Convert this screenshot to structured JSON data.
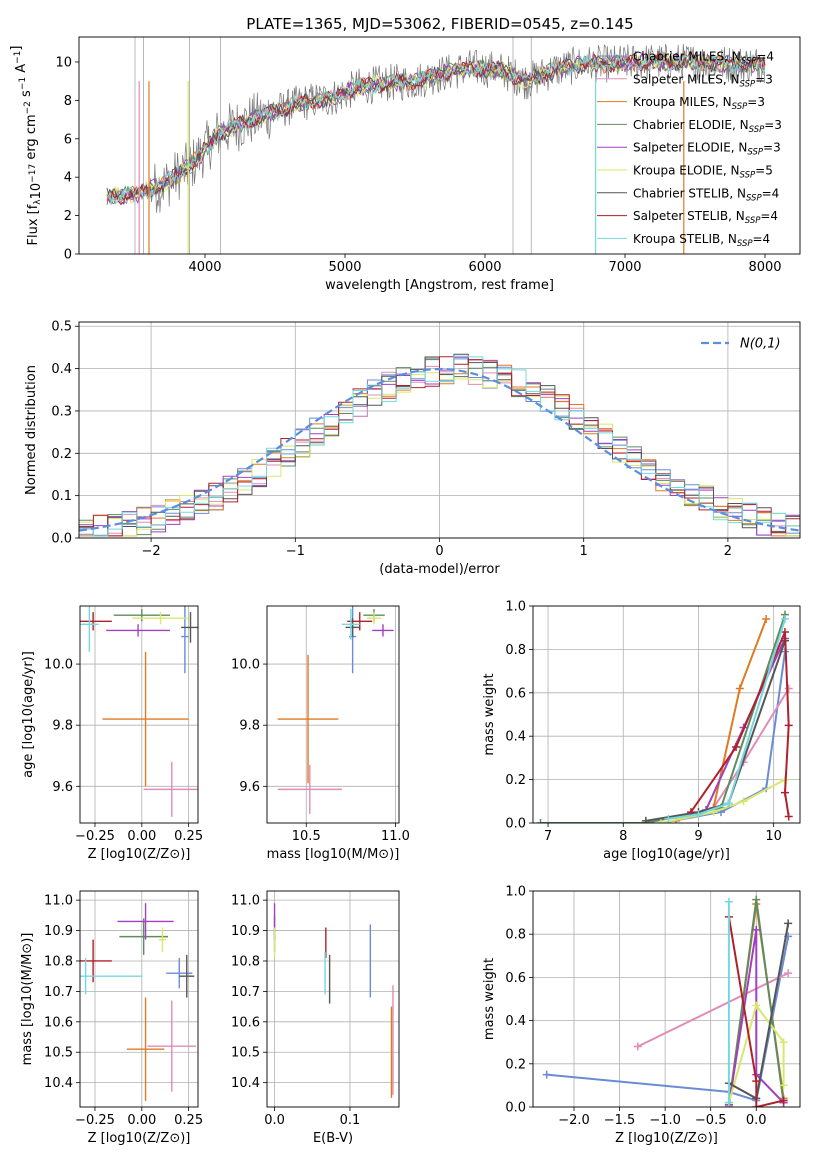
{
  "figure_title": "PLATE=1365, MJD=53062, FIBERID=0545, z=0.145",
  "colors": {
    "Chabrier MILES": "#6a8cd6",
    "Salpeter MILES": "#e08cb8",
    "Kroupa MILES": "#e07a20",
    "Chabrier ELODIE": "#5f8c5f",
    "Salpeter ELODIE": "#a040c0",
    "Kroupa ELODIE": "#d8e86a",
    "Chabrier STELIB": "#555555",
    "Salpeter STELIB": "#b0202a",
    "Kroupa STELIB": "#74d8e0",
    "data": "#777777",
    "normal_curve": "#5b8ee0"
  },
  "chart_data": [
    {
      "type": "line",
      "title": "PLATE=1365, MJD=53062, FIBERID=0545, z=0.145",
      "xlabel": "wavelength [Angstrom, rest frame]",
      "ylabel": "Flux [f_λ 10^-17 erg cm^-2 s^-1 A^-1]",
      "xlim": [
        3100,
        8250
      ],
      "ylim": [
        0,
        11.3
      ],
      "xticks": [
        4000,
        5000,
        6000,
        7000,
        8000
      ],
      "yticks": [
        0,
        2,
        4,
        6,
        8,
        10
      ],
      "grid": false,
      "legend_position": "top-right",
      "continuum": [
        [
          3300,
          3.0
        ],
        [
          3500,
          3.1
        ],
        [
          3700,
          3.6
        ],
        [
          3900,
          4.6
        ],
        [
          4100,
          6.3
        ],
        [
          4300,
          6.9
        ],
        [
          4500,
          7.4
        ],
        [
          4700,
          7.9
        ],
        [
          4900,
          8.1
        ],
        [
          5100,
          8.7
        ],
        [
          5300,
          8.9
        ],
        [
          5500,
          9.0
        ],
        [
          5700,
          9.4
        ],
        [
          5900,
          9.7
        ],
        [
          6100,
          9.6
        ],
        [
          6300,
          9.0
        ],
        [
          6500,
          9.6
        ],
        [
          6700,
          9.9
        ],
        [
          6900,
          9.9
        ],
        [
          7100,
          10.0
        ],
        [
          7300,
          10.0
        ],
        [
          7500,
          10.0
        ],
        [
          7700,
          9.9
        ],
        [
          7900,
          9.9
        ],
        [
          8000,
          9.9
        ]
      ],
      "series": [
        {
          "name": "Chabrier MILES",
          "nssp": 4
        },
        {
          "name": "Salpeter MILES",
          "nssp": 3
        },
        {
          "name": "Kroupa MILES",
          "nssp": 3
        },
        {
          "name": "Chabrier ELODIE",
          "nssp": 3
        },
        {
          "name": "Salpeter ELODIE",
          "nssp": 3
        },
        {
          "name": "Kroupa ELODIE",
          "nssp": 5
        },
        {
          "name": "Chabrier STELIB",
          "nssp": 4
        },
        {
          "name": "Salpeter STELIB",
          "nssp": 4
        },
        {
          "name": "Kroupa STELIB",
          "nssp": 4
        }
      ]
    },
    {
      "type": "bar",
      "xlabel": "(data-model)/error",
      "ylabel": "Normed distribution",
      "xlim": [
        -2.5,
        2.5
      ],
      "ylim": [
        0,
        0.51
      ],
      "xticks": [
        -2,
        -1,
        0,
        1,
        2
      ],
      "yticks": [
        0.0,
        0.1,
        0.2,
        0.3,
        0.4,
        0.5
      ],
      "grid": true,
      "legend_position": "top-right",
      "legend": "N(0,1)",
      "bin_width": 0.1,
      "bin_start": -2.5,
      "reference_curve": "N(0,1)"
    },
    {
      "type": "scatter",
      "xlabel": "Z [log10(Z/Z⊙)]",
      "ylabel": "age [log10(age/yr)]",
      "xlim": [
        -0.33,
        0.3
      ],
      "ylim": [
        9.48,
        10.19
      ],
      "xticks": [
        -0.25,
        0.0,
        0.25
      ],
      "yticks": [
        9.6,
        9.8,
        10.0
      ],
      "grid": true,
      "points": [
        {
          "series": "Chabrier MILES",
          "x": 0.23,
          "y": 10.09,
          "xerr": 0.02,
          "yerr": 0.12
        },
        {
          "series": "Salpeter MILES",
          "x": 0.16,
          "y": 9.59,
          "xerr": 0.15,
          "yerr": 0.09
        },
        {
          "series": "Kroupa MILES",
          "x": 0.02,
          "y": 9.82,
          "xerr": 0.23,
          "yerr": 0.22
        },
        {
          "series": "Chabrier ELODIE",
          "x": 0.0,
          "y": 10.16,
          "xerr": 0.15,
          "yerr": 0.02
        },
        {
          "series": "Salpeter ELODIE",
          "x": -0.02,
          "y": 10.11,
          "xerr": 0.17,
          "yerr": 0.02
        },
        {
          "series": "Kroupa ELODIE",
          "x": 0.1,
          "y": 10.15,
          "xerr": 0.15,
          "yerr": 0.02
        },
        {
          "series": "Chabrier STELIB",
          "x": 0.26,
          "y": 10.12,
          "xerr": 0.05,
          "yerr": 0.05
        },
        {
          "series": "Salpeter STELIB",
          "x": -0.26,
          "y": 10.14,
          "xerr": 0.1,
          "yerr": 0.03
        },
        {
          "series": "Kroupa STELIB",
          "x": -0.28,
          "y": 10.13,
          "xerr": 0.05,
          "yerr": 0.09
        }
      ]
    },
    {
      "type": "scatter",
      "xlabel": "mass [log10(M/M⊙)]",
      "ylabel": "",
      "xlim": [
        10.28,
        11.02
      ],
      "ylim": [
        9.48,
        10.19
      ],
      "xticks": [
        10.5,
        11.0
      ],
      "yticks": [
        9.6,
        9.8,
        10.0
      ],
      "grid": true,
      "points": [
        {
          "series": "Chabrier MILES",
          "x": 10.76,
          "y": 10.09,
          "xerr": 0.02,
          "yerr": 0.12
        },
        {
          "series": "Salpeter MILES",
          "x": 10.52,
          "y": 9.59,
          "xerr": 0.18,
          "yerr": 0.08
        },
        {
          "series": "Kroupa MILES",
          "x": 10.51,
          "y": 9.82,
          "xerr": 0.17,
          "yerr": 0.21
        },
        {
          "series": "Chabrier ELODIE",
          "x": 10.88,
          "y": 10.16,
          "xerr": 0.06,
          "yerr": 0.02
        },
        {
          "series": "Salpeter ELODIE",
          "x": 10.93,
          "y": 10.11,
          "xerr": 0.06,
          "yerr": 0.02
        },
        {
          "series": "Kroupa ELODIE",
          "x": 10.88,
          "y": 10.15,
          "xerr": 0.04,
          "yerr": 0.02
        },
        {
          "series": "Chabrier STELIB",
          "x": 10.76,
          "y": 10.12,
          "xerr": 0.04,
          "yerr": 0.03
        },
        {
          "series": "Salpeter STELIB",
          "x": 10.8,
          "y": 10.14,
          "xerr": 0.07,
          "yerr": 0.03
        },
        {
          "series": "Kroupa STELIB",
          "x": 10.75,
          "y": 10.13,
          "xerr": 0.05,
          "yerr": 0.05
        }
      ]
    },
    {
      "type": "line",
      "xlabel": "age [log10(age/yr)]",
      "ylabel": "mass weight",
      "xlim": [
        6.8,
        10.35
      ],
      "ylim": [
        0,
        1.0
      ],
      "xticks": [
        7,
        8,
        9,
        10
      ],
      "yticks": [
        0.0,
        0.2,
        0.4,
        0.6,
        0.8,
        1.0
      ],
      "grid": true,
      "series": [
        {
          "name": "Chabrier MILES",
          "points": [
            [
              8.5,
              0.0
            ],
            [
              9.3,
              0.05
            ],
            [
              9.9,
              0.16
            ],
            [
              10.15,
              0.79
            ]
          ]
        },
        {
          "name": "Salpeter MILES",
          "points": [
            [
              9.2,
              0.07
            ],
            [
              9.6,
              0.28
            ],
            [
              10.2,
              0.62
            ]
          ]
        },
        {
          "name": "Kroupa MILES",
          "points": [
            [
              8.7,
              0.01
            ],
            [
              9.2,
              0.07
            ],
            [
              9.55,
              0.62
            ],
            [
              9.9,
              0.94
            ]
          ]
        },
        {
          "name": "Chabrier ELODIE",
          "points": [
            [
              6.9,
              0.0
            ],
            [
              8.3,
              0.0
            ],
            [
              9.3,
              0.07
            ],
            [
              10.15,
              0.96
            ]
          ]
        },
        {
          "name": "Salpeter ELODIE",
          "points": [
            [
              8.9,
              0.04
            ],
            [
              9.1,
              0.06
            ],
            [
              9.6,
              0.44
            ],
            [
              10.15,
              0.85
            ]
          ]
        },
        {
          "name": "Kroupa ELODIE",
          "points": [
            [
              8.5,
              0.0
            ],
            [
              9.2,
              0.05
            ],
            [
              9.6,
              0.1
            ],
            [
              10.15,
              0.2
            ]
          ]
        },
        {
          "name": "Chabrier STELIB",
          "points": [
            [
              8.3,
              0.01
            ],
            [
              9.0,
              0.05
            ],
            [
              9.4,
              0.09
            ],
            [
              10.15,
              0.84
            ]
          ]
        },
        {
          "name": "Salpeter STELIB",
          "points": [
            [
              8.9,
              0.05
            ],
            [
              9.5,
              0.35
            ],
            [
              10.15,
              0.88
            ],
            [
              10.2,
              0.45
            ],
            [
              10.15,
              0.14
            ],
            [
              10.2,
              0.03
            ]
          ]
        },
        {
          "name": "Kroupa STELIB",
          "points": [
            [
              8.6,
              0.02
            ],
            [
              9.0,
              0.04
            ],
            [
              9.4,
              0.09
            ],
            [
              10.15,
              0.94
            ]
          ]
        }
      ]
    },
    {
      "type": "scatter",
      "xlabel": "Z [log10(Z/Z⊙)]",
      "ylabel": "mass [log10(M/M⊙)]",
      "xlim": [
        -0.33,
        0.3
      ],
      "ylim": [
        10.32,
        11.03
      ],
      "xticks": [
        -0.25,
        0.0,
        0.25
      ],
      "yticks": [
        10.4,
        10.5,
        10.6,
        10.7,
        10.8,
        10.9,
        11.0
      ],
      "grid": true,
      "points": [
        {
          "series": "Chabrier MILES",
          "x": 0.2,
          "y": 10.76,
          "xerr": 0.07,
          "yerr": 0.05
        },
        {
          "series": "Salpeter MILES",
          "x": 0.16,
          "y": 10.52,
          "xerr": 0.13,
          "yerr": 0.15
        },
        {
          "series": "Kroupa MILES",
          "x": 0.02,
          "y": 10.51,
          "xerr": 0.1,
          "yerr": 0.17
        },
        {
          "series": "Chabrier ELODIE",
          "x": 0.01,
          "y": 10.88,
          "xerr": 0.13,
          "yerr": 0.06
        },
        {
          "series": "Salpeter ELODIE",
          "x": 0.02,
          "y": 10.93,
          "xerr": 0.15,
          "yerr": 0.06
        },
        {
          "series": "Kroupa ELODIE",
          "x": 0.11,
          "y": 10.87,
          "xerr": 0.02,
          "yerr": 0.04
        },
        {
          "series": "Chabrier STELIB",
          "x": 0.24,
          "y": 10.75,
          "xerr": 0.04,
          "yerr": 0.07
        },
        {
          "series": "Salpeter STELIB",
          "x": -0.26,
          "y": 10.8,
          "xerr": 0.1,
          "yerr": 0.07
        },
        {
          "series": "Kroupa STELIB",
          "x": -0.3,
          "y": 10.75,
          "xerr": 0.3,
          "yerr": 0.06
        }
      ]
    },
    {
      "type": "scatter",
      "xlabel": "E(B-V)",
      "ylabel": "",
      "xlim": [
        -0.01,
        0.165
      ],
      "ylim": [
        10.32,
        11.03
      ],
      "xticks": [
        0.0,
        0.1
      ],
      "yticks": [
        10.4,
        10.5,
        10.6,
        10.7,
        10.8,
        10.9,
        11.0
      ],
      "grid": true,
      "points": [
        {
          "series": "Chabrier MILES",
          "x": 0.127,
          "y": 10.8,
          "yerr": 0.12
        },
        {
          "series": "Salpeter MILES",
          "x": 0.157,
          "y": 10.54,
          "yerr": 0.18
        },
        {
          "series": "Kroupa MILES",
          "x": 0.155,
          "y": 10.5,
          "yerr": 0.15
        },
        {
          "series": "Chabrier ELODIE",
          "x": 0.0,
          "y": 10.89,
          "yerr": 0.06
        },
        {
          "series": "Salpeter ELODIE",
          "x": 0.0,
          "y": 10.93,
          "yerr": 0.06
        },
        {
          "series": "Kroupa ELODIE",
          "x": 0.0,
          "y": 10.86,
          "yerr": 0.05
        },
        {
          "series": "Chabrier STELIB",
          "x": 0.073,
          "y": 10.74,
          "yerr": 0.08
        },
        {
          "series": "Salpeter STELIB",
          "x": 0.068,
          "y": 10.86,
          "yerr": 0.05
        },
        {
          "series": "Kroupa STELIB",
          "x": 0.067,
          "y": 10.76,
          "yerr": 0.07
        }
      ]
    },
    {
      "type": "line",
      "xlabel": "Z [log10(Z/Z⊙)]",
      "ylabel": "mass weight",
      "xlim": [
        -2.45,
        0.48
      ],
      "ylim": [
        0,
        1.0
      ],
      "xticks": [
        -2.0,
        -1.5,
        -1.0,
        -0.5,
        0.0
      ],
      "yticks": [
        0.0,
        0.2,
        0.4,
        0.6,
        0.8,
        1.0
      ],
      "grid": true,
      "series": [
        {
          "name": "Chabrier MILES",
          "points": [
            [
              -2.3,
              0.15
            ],
            [
              -0.3,
              0.07
            ],
            [
              0.0,
              0.03
            ],
            [
              0.35,
              0.79
            ]
          ]
        },
        {
          "name": "Salpeter MILES",
          "points": [
            [
              -1.3,
              0.28
            ],
            [
              0.35,
              0.62
            ]
          ]
        },
        {
          "name": "Kroupa MILES",
          "points": [
            [
              -0.3,
              0.01
            ],
            [
              0.0,
              0.94
            ],
            [
              0.3,
              0.04
            ]
          ]
        },
        {
          "name": "Chabrier ELODIE",
          "points": [
            [
              -0.3,
              0.0
            ],
            [
              0.0,
              0.96
            ],
            [
              0.3,
              0.02
            ]
          ]
        },
        {
          "name": "Salpeter ELODIE",
          "points": [
            [
              -0.3,
              0.01
            ],
            [
              0.0,
              0.82
            ],
            [
              0.0,
              0.15
            ],
            [
              0.3,
              0.02
            ]
          ]
        },
        {
          "name": "Kroupa ELODIE",
          "points": [
            [
              -0.3,
              0.02
            ],
            [
              0.0,
              0.47
            ],
            [
              0.3,
              0.3
            ],
            [
              0.3,
              0.1
            ]
          ]
        },
        {
          "name": "Chabrier STELIB",
          "points": [
            [
              -0.3,
              0.11
            ],
            [
              0.0,
              0.04
            ],
            [
              0.35,
              0.85
            ]
          ]
        },
        {
          "name": "Salpeter STELIB",
          "points": [
            [
              -0.3,
              0.88
            ],
            [
              0.0,
              0.12
            ],
            [
              0.0,
              0.0
            ],
            [
              0.3,
              0.03
            ]
          ]
        },
        {
          "name": "Kroupa STELIB",
          "points": [
            [
              -0.3,
              0.95
            ],
            [
              -0.3,
              0.02
            ]
          ]
        }
      ]
    }
  ]
}
